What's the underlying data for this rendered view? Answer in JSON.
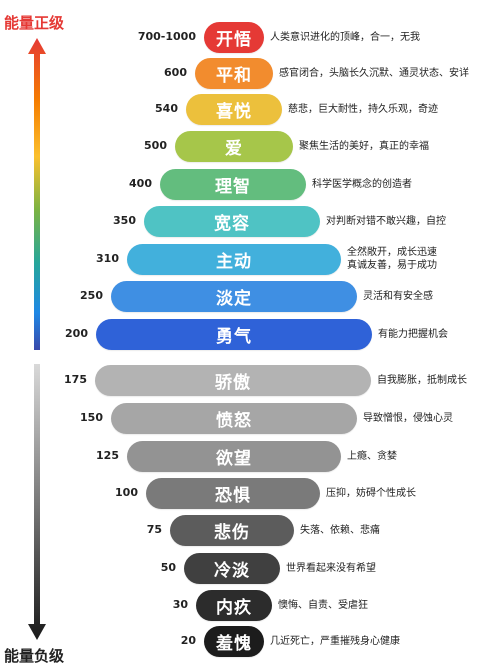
{
  "titles": {
    "positive": "能量正级",
    "negative": "能量负级"
  },
  "arrows": {
    "up_colors": [
      "#e53935",
      "#f57c00",
      "#fbc02d",
      "#7cb342",
      "#26a69a",
      "#1e88e5",
      "#3949ab"
    ],
    "down_colors": [
      "#d9d9d9",
      "#222222"
    ]
  },
  "levels": [
    {
      "value": "700-1000",
      "name": "开悟",
      "desc": [
        "人类意识进化的顶峰，合一，无我"
      ],
      "color": "#e53935"
    },
    {
      "value": "600",
      "name": "平和",
      "desc": [
        "感官闭合，头脑长久沉默、通灵状态、安详"
      ],
      "color": "#f28c2e"
    },
    {
      "value": "540",
      "name": "喜悦",
      "desc": [
        "慈悲，巨大耐性，持久乐观，奇迹"
      ],
      "color": "#ecc03c"
    },
    {
      "value": "500",
      "name": "爱",
      "desc": [
        "聚焦生活的美好，真正的幸福"
      ],
      "color": "#a6c64a"
    },
    {
      "value": "400",
      "name": "理智",
      "desc": [
        "科学医学概念的创造者"
      ],
      "color": "#63bd7e"
    },
    {
      "value": "350",
      "name": "宽容",
      "desc": [
        "对判断对错不敢兴趣，自控"
      ],
      "color": "#4fc3c4"
    },
    {
      "value": "310",
      "name": "主动",
      "desc": [
        "全然敞开，成长迅速",
        "真诚友善，易于成功"
      ],
      "color": "#42b0dc"
    },
    {
      "value": "250",
      "name": "淡定",
      "desc": [
        "灵活和有安全感"
      ],
      "color": "#3f8fe3"
    },
    {
      "value": "200",
      "name": "勇气",
      "desc": [
        "有能力把握机会"
      ],
      "color": "#2f62d8"
    },
    {
      "value": "175",
      "name": "骄傲",
      "desc": [
        "自我膨胀，抵制成长"
      ],
      "color": "#b3b3b3"
    },
    {
      "value": "150",
      "name": "愤怒",
      "desc": [
        "导致憎恨，侵蚀心灵"
      ],
      "color": "#a6a6a6"
    },
    {
      "value": "125",
      "name": "欲望",
      "desc": [
        "上瘾、贪婪"
      ],
      "color": "#939393"
    },
    {
      "value": "100",
      "name": "恐惧",
      "desc": [
        "压抑，妨碍个性成长"
      ],
      "color": "#7a7a7a"
    },
    {
      "value": "75",
      "name": "悲伤",
      "desc": [
        "失落、依赖、悲痛"
      ],
      "color": "#5c5c5c"
    },
    {
      "value": "50",
      "name": "冷淡",
      "desc": [
        "世界看起来没有希望"
      ],
      "color": "#404040"
    },
    {
      "value": "30",
      "name": "内疚",
      "desc": [
        "懊悔、自责、受虐狂"
      ],
      "color": "#2c2c2c"
    },
    {
      "value": "20",
      "name": "羞愧",
      "desc": [
        "几近死亡，严重摧残身心健康"
      ],
      "color": "#1c1c1c"
    }
  ]
}
